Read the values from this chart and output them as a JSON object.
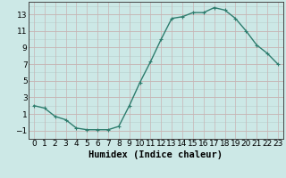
{
  "x": [
    0,
    1,
    2,
    3,
    4,
    5,
    6,
    7,
    8,
    9,
    10,
    11,
    12,
    13,
    14,
    15,
    16,
    17,
    18,
    19,
    20,
    21,
    22,
    23
  ],
  "y": [
    2.0,
    1.7,
    0.7,
    0.3,
    -0.7,
    -0.9,
    -0.9,
    -0.9,
    -0.5,
    2.0,
    4.8,
    7.3,
    10.0,
    12.5,
    12.7,
    13.2,
    13.2,
    13.8,
    13.5,
    12.5,
    11.0,
    9.3,
    8.3,
    7.0
  ],
  "line_color": "#2e7d6e",
  "marker": "+",
  "bg_color": "#cce8e6",
  "hgrid_major_color": "#c8b4b4",
  "vgrid_color": "#c8b4b4",
  "hgrid_minor_color": "#bcd4d2",
  "xlabel": "Humidex (Indice chaleur)",
  "xlim": [
    -0.5,
    23.5
  ],
  "ylim": [
    -2.0,
    14.5
  ],
  "yticks": [
    -1,
    1,
    3,
    5,
    7,
    9,
    11,
    13
  ],
  "xticks": [
    0,
    1,
    2,
    3,
    4,
    5,
    6,
    7,
    8,
    9,
    10,
    11,
    12,
    13,
    14,
    15,
    16,
    17,
    18,
    19,
    20,
    21,
    22,
    23
  ],
  "tick_fontsize": 6.5,
  "label_fontsize": 7.5,
  "line_width": 1.0,
  "marker_size": 3.5,
  "marker_ew": 0.8
}
